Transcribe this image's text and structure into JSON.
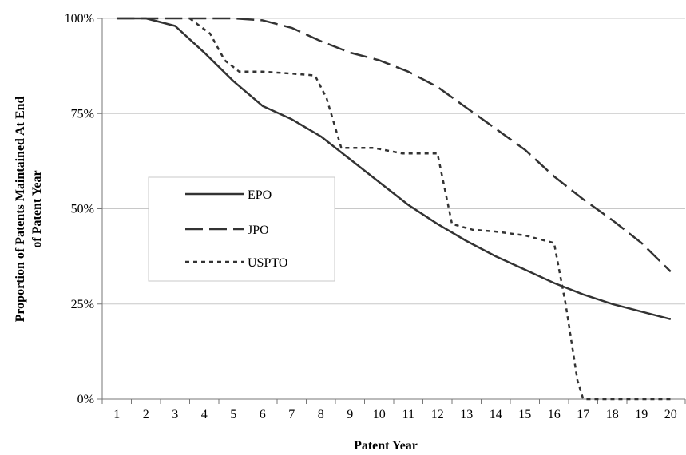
{
  "chart_data": {
    "type": "line",
    "title": "",
    "xlabel": "Patent Year",
    "ylabel_lines": [
      "Proportion of Patents Maintained At End",
      "of Patent Year"
    ],
    "x": [
      1,
      2,
      3,
      4,
      5,
      6,
      7,
      8,
      9,
      10,
      11,
      12,
      13,
      14,
      15,
      16,
      17,
      18,
      19,
      20
    ],
    "xticks": [
      "1",
      "2",
      "3",
      "4",
      "5",
      "6",
      "7",
      "8",
      "9",
      "10",
      "11",
      "12",
      "13",
      "14",
      "15",
      "16",
      "17",
      "18",
      "19",
      "20"
    ],
    "yticks": [
      "0%",
      "25%",
      "50%",
      "75%",
      "100%"
    ],
    "ylim": [
      0,
      100
    ],
    "grid": "horizontal",
    "legend_position": "center-left",
    "series": [
      {
        "name": "EPO",
        "style": "solid",
        "color": "#333333",
        "values": [
          100,
          100,
          98,
          91,
          83.5,
          77,
          73.5,
          69,
          63,
          57,
          51,
          46,
          41.5,
          37.5,
          34,
          30.5,
          27.5,
          25,
          23,
          21
        ]
      },
      {
        "name": "JPO",
        "style": "long-dash",
        "color": "#333333",
        "values": [
          100,
          100,
          100,
          100,
          100,
          99.5,
          97.5,
          94,
          91,
          89,
          86,
          82,
          76.5,
          71,
          65.5,
          58.5,
          52.5,
          47,
          41,
          33.5
        ]
      },
      {
        "name": "USPTO",
        "style": "short-dash",
        "color": "#333333",
        "points": [
          [
            3.5,
            100
          ],
          [
            4.2,
            96
          ],
          [
            4.7,
            89
          ],
          [
            5.2,
            86
          ],
          [
            6,
            86
          ],
          [
            7,
            85.5
          ],
          [
            7.8,
            85
          ],
          [
            8.2,
            79
          ],
          [
            8.7,
            66
          ],
          [
            9.8,
            66
          ],
          [
            10.8,
            64.5
          ],
          [
            12,
            64.5
          ],
          [
            12.5,
            46
          ],
          [
            13.2,
            44.5
          ],
          [
            14,
            44
          ],
          [
            15,
            43
          ],
          [
            16,
            41
          ],
          [
            16.4,
            25
          ],
          [
            16.8,
            5
          ],
          [
            17,
            0
          ],
          [
            18,
            0
          ],
          [
            20,
            0
          ]
        ]
      }
    ]
  }
}
